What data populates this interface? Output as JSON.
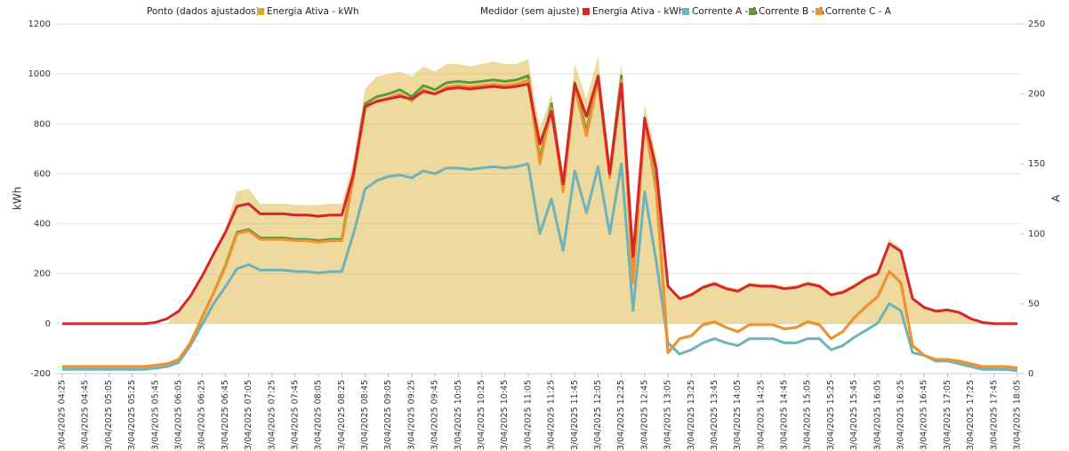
{
  "chart_data": {
    "type": "line",
    "legend_groups": [
      {
        "title": "Ponto (dados ajustados)",
        "series": [
          0
        ]
      },
      {
        "title": "Medidor (sem ajuste)",
        "series": [
          1,
          2,
          3,
          4
        ]
      }
    ],
    "ylabel": "kWh",
    "y2label": "A",
    "categories": [
      "03/04/2025 04:25",
      null,
      "03/04/2025 04:45",
      null,
      "03/04/2025 05:05",
      null,
      "03/04/2025 05:25",
      null,
      "03/04/2025 05:45",
      null,
      "03/04/2025 06:05",
      null,
      "03/04/2025 06:25",
      null,
      "03/04/2025 06:45",
      null,
      "03/04/2025 07:05",
      null,
      "03/04/2025 07:25",
      null,
      "03/04/2025 07:45",
      null,
      "03/04/2025 08:05",
      null,
      "03/04/2025 08:25",
      null,
      "03/04/2025 08:45",
      null,
      "03/04/2025 09:05",
      null,
      "03/04/2025 09:25",
      null,
      "03/04/2025 09:45",
      null,
      "03/04/2025 10:05",
      null,
      "03/04/2025 10:25",
      null,
      "03/04/2025 10:45",
      null,
      "03/04/2025 11:05",
      null,
      "03/04/2025 11:25",
      null,
      "03/04/2025 11:45",
      null,
      "03/04/2025 12:05",
      null,
      "03/04/2025 12:25",
      null,
      "03/04/2025 12:45",
      null,
      "03/04/2025 13:05",
      null,
      "03/04/2025 13:25",
      null,
      "03/04/2025 13:45",
      null,
      "03/04/2025 14:05",
      null,
      "03/04/2025 14:25",
      null,
      "03/04/2025 14:45",
      null,
      "03/04/2025 15:05",
      null,
      "03/04/2025 15:25",
      null,
      "03/04/2025 15:45",
      null,
      "03/04/2025 16:05",
      null,
      "03/04/2025 16:25",
      null,
      "03/04/2025 16:45",
      null,
      "03/04/2025 17:05",
      null,
      "03/04/2025 17:25",
      null,
      "03/04/2025 17:45",
      null,
      "03/04/2025 18:05"
    ],
    "series": [
      {
        "name": "Energia Ativa - kWh",
        "type": "area",
        "color": "#d9ad2a",
        "axis": "y",
        "values": [
          0,
          0,
          0,
          0,
          0,
          0,
          0,
          0,
          0,
          0,
          50,
          110,
          190,
          280,
          380,
          530,
          540,
          480,
          480,
          480,
          475,
          475,
          475,
          480,
          480,
          650,
          940,
          990,
          1000,
          1010,
          990,
          1030,
          1010,
          1040,
          1040,
          1030,
          1040,
          1050,
          1040,
          1040,
          1060,
          780,
          920,
          610,
          1040,
          900,
          1070,
          650,
          1040,
          290,
          880,
          670,
          160,
          105,
          125,
          155,
          170,
          150,
          140,
          165,
          160,
          160,
          150,
          155,
          170,
          160,
          125,
          135,
          160,
          190,
          210,
          340,
          300,
          105,
          65,
          50,
          55,
          45,
          20,
          5,
          0,
          0,
          0
        ]
      },
      {
        "name": "Energia Ativa - kWh",
        "type": "line",
        "color": "#d7262a",
        "axis": "y",
        "values": [
          0,
          0,
          0,
          0,
          0,
          0,
          0,
          0,
          5,
          20,
          50,
          110,
          190,
          280,
          365,
          470,
          480,
          440,
          440,
          440,
          435,
          435,
          430,
          435,
          435,
          600,
          870,
          890,
          900,
          910,
          900,
          930,
          920,
          940,
          945,
          940,
          945,
          950,
          945,
          950,
          960,
          720,
          850,
          560,
          960,
          830,
          990,
          600,
          960,
          270,
          820,
          620,
          150,
          100,
          115,
          145,
          160,
          140,
          130,
          155,
          150,
          150,
          140,
          145,
          160,
          150,
          115,
          125,
          150,
          180,
          200,
          320,
          290,
          100,
          65,
          50,
          55,
          45,
          20,
          5,
          0,
          0,
          0
        ]
      },
      {
        "name": "Corrente A - A",
        "type": "line",
        "color": "#6fb2b9",
        "axis": "y2",
        "values": [
          3,
          3,
          3,
          3,
          3,
          3,
          3,
          3,
          4,
          5,
          8,
          20,
          35,
          50,
          62,
          75,
          78,
          74,
          74,
          74,
          73,
          73,
          72,
          73,
          73,
          100,
          132,
          138,
          141,
          142,
          140,
          145,
          143,
          147,
          147,
          146,
          147,
          148,
          147,
          148,
          150,
          100,
          125,
          88,
          145,
          115,
          148,
          100,
          150,
          45,
          130,
          80,
          22,
          14,
          17,
          22,
          25,
          22,
          20,
          25,
          25,
          25,
          22,
          22,
          25,
          25,
          17,
          20,
          26,
          31,
          36,
          50,
          45,
          15,
          13,
          9,
          9,
          7,
          5,
          3,
          3,
          3,
          2
        ]
      },
      {
        "name": "Corrente B - A",
        "type": "line",
        "color": "#5b9a3c",
        "axis": "y2",
        "values": [
          5,
          5,
          5,
          5,
          5,
          5,
          5,
          5,
          6,
          7,
          10,
          22,
          40,
          58,
          77,
          101,
          103,
          97,
          97,
          97,
          96,
          96,
          95,
          96,
          96,
          143,
          193,
          198,
          200,
          203,
          198,
          206,
          203,
          208,
          209,
          208,
          209,
          210,
          209,
          210,
          213,
          153,
          193,
          133,
          208,
          173,
          213,
          143,
          213,
          68,
          183,
          133,
          15,
          25,
          27,
          35,
          37,
          33,
          30,
          35,
          35,
          35,
          32,
          33,
          37,
          35,
          25,
          30,
          40,
          48,
          55,
          73,
          65,
          20,
          13,
          10,
          10,
          9,
          7,
          5,
          5,
          5,
          4
        ]
      },
      {
        "name": "Corrente C - A",
        "type": "line",
        "color": "#f0922f",
        "axis": "y2",
        "values": [
          5,
          5,
          5,
          5,
          5,
          5,
          5,
          5,
          6,
          7,
          10,
          22,
          40,
          58,
          76,
          100,
          102,
          96,
          96,
          96,
          95,
          95,
          94,
          95,
          95,
          140,
          190,
          195,
          197,
          200,
          195,
          203,
          200,
          205,
          206,
          205,
          206,
          207,
          206,
          207,
          210,
          150,
          190,
          130,
          205,
          170,
          210,
          140,
          210,
          65,
          180,
          130,
          15,
          25,
          27,
          35,
          37,
          33,
          30,
          35,
          35,
          35,
          32,
          33,
          37,
          35,
          25,
          30,
          40,
          48,
          55,
          73,
          65,
          20,
          13,
          10,
          10,
          9,
          7,
          5,
          5,
          5,
          4
        ]
      }
    ],
    "ylim": [
      -200,
      1200
    ],
    "yticks": [
      -200,
      0,
      200,
      400,
      600,
      800,
      1000,
      1200
    ],
    "y2lim": [
      0,
      250
    ],
    "y2ticks": [
      0,
      50,
      100,
      150,
      200,
      250
    ],
    "grid": true
  }
}
